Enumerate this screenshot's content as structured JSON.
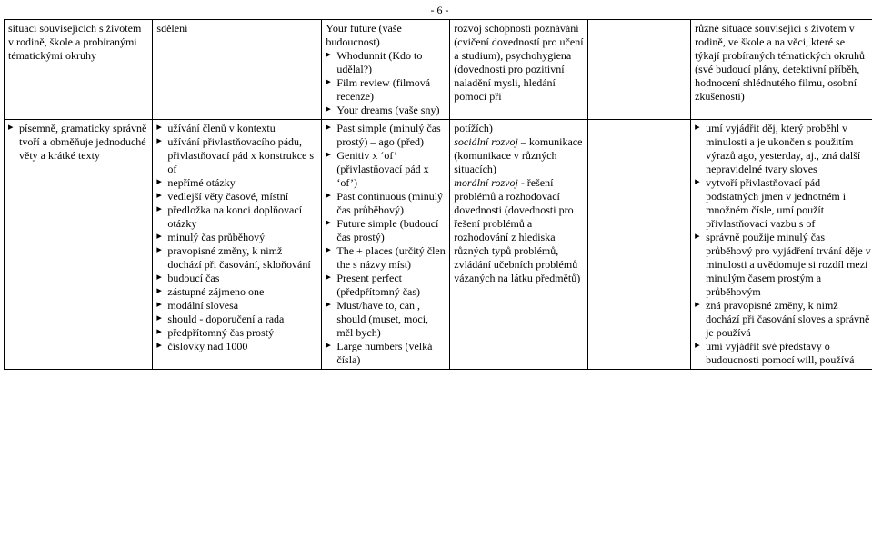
{
  "pageNumber": "- 6 -",
  "row1": {
    "col1": "situací souvisejících s životem v rodině, škole a probíranými tématickými okruhy",
    "col2": "sdělení",
    "col3_top": "Your future (vaše budoucnost)",
    "col3_items": [
      "Whodunnit (Kdo to udělal?)",
      "Film review (filmová recenze)",
      "Your dreams (vaše sny)"
    ],
    "col4": "rozvoj schopností poznávání (cvičení dovedností pro učení a studium), psychohygiena (dovednosti pro pozitivní naladění mysli, hledání pomoci při",
    "col6": "různé situace související s životem v rodině, ve škole a na věci, které se týkají probíraných tématických okruhů (své budoucí plány, detektivní příběh, hodnocení shlédnutého filmu, osobní zkušenosti)"
  },
  "row2": {
    "col1_items": [
      "písemně, gramaticky správně tvoří a obměňuje jednoduché věty a krátké texty"
    ],
    "col2_items": [
      "užívání členů v kontextu",
      "užívání přivlastňovacího pádu, přivlastňovací pád x konstrukce s of",
      "nepřímé otázky",
      "vedlejší věty časové, místní",
      "předložka na konci doplňovací otázky",
      "minulý čas průběhový",
      "pravopisné změny, k nimž dochází při časování, skloňování",
      "budoucí čas",
      "zástupné zájmeno one",
      "modální slovesa",
      "should - doporučení a rada",
      "předpřítomný čas prostý",
      "číslovky nad 1000"
    ],
    "col3_items": [
      "Past simple (minulý čas prostý) – ago (před)",
      "Genitiv x ‘of’ (přivlastňovací pád x ‘of’)",
      "Past continuous (minulý čas průběhový)",
      "Future simple (budoucí čas prostý)",
      "The + places (určitý člen the s názvy míst)",
      "Present perfect (předpřítomný čas)",
      "Must/have to, can , should (muset, moci, měl bych)",
      "Large numbers (velká čísla)"
    ],
    "col4_a": "potížích)",
    "col4_b": "sociální rozvoj",
    "col4_b2": " – komunikace (komunikace v různých situacích)",
    "col4_c": "morální rozvoj",
    "col4_c2": " - řešení problémů a rozhodovací dovednosti (dovednosti pro řešení problémů a rozhodování z hlediska různých typů problémů, zvládání učebních problémů vázaných na látku předmětů)",
    "col6_items": [
      "umí vyjádřit děj, který proběhl v minulosti a je ukončen s použitím výrazů ago, yesterday, aj., zná další nepravidelné tvary sloves",
      "vytvoří přivlastňovací pád podstatných jmen v jednotném i množném čísle, umí použít přivlastňovací vazbu s of",
      "správně použije minulý čas průběhový pro vyjádření trvání děje v minulosti  a uvědomuje si rozdíl mezi minulým časem prostým a průběhovým",
      "zná pravopisné změny, k nimž dochází při časování sloves a správně je používá",
      "umí vyjádřit své představy o budoucnosti pomocí will, používá"
    ]
  }
}
